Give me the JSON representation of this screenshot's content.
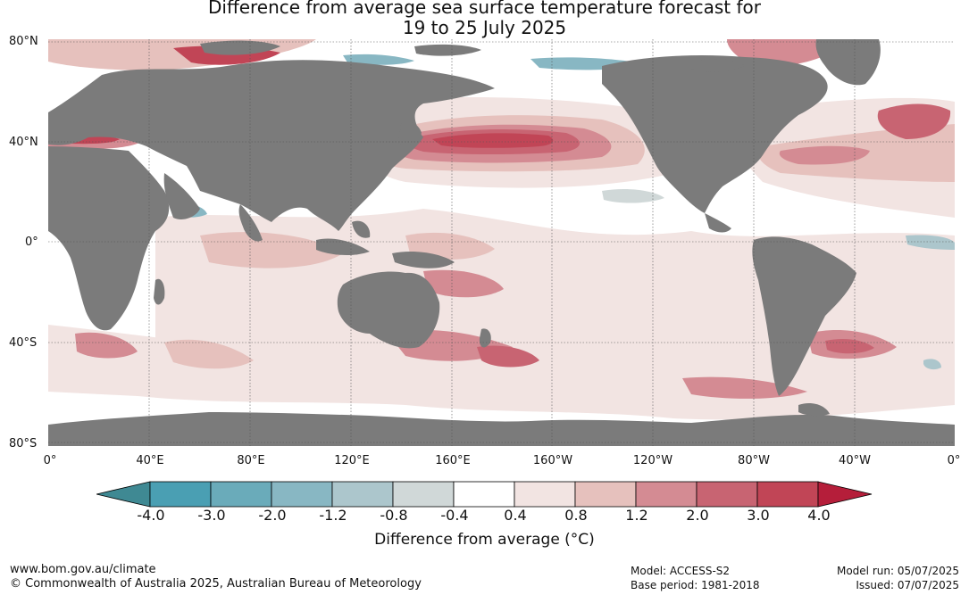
{
  "title_line1": "Difference from average sea surface temperature forecast for",
  "title_line2": "19 to 25 July 2025",
  "lat_labels": [
    "80°N",
    "40°N",
    "0°",
    "40°S",
    "80°S"
  ],
  "lon_labels": [
    "0°",
    "40°E",
    "80°E",
    "120°E",
    "160°E",
    "160°W",
    "120°W",
    "80°W",
    "40°W",
    "0°"
  ],
  "colorbar": {
    "labels": [
      "-4.0",
      "-3.0",
      "-2.0",
      "-1.2",
      "-0.8",
      "-0.4",
      "0.4",
      "0.8",
      "1.2",
      "2.0",
      "3.0",
      "4.0"
    ],
    "colors": [
      "#3f8993",
      "#4a9fb3",
      "#6aabba",
      "#88b7c3",
      "#acc6cc",
      "#d0d8d8",
      "#ffffff",
      "#f2e4e2",
      "#e6c1bd",
      "#d48b93",
      "#c86472",
      "#c14556",
      "#b51e3a"
    ],
    "title": "Difference from average (°C)"
  },
  "colors": {
    "land": "#7b7b7b",
    "ocean": "#ffffff",
    "grid": "#555555"
  },
  "footer": {
    "url": "www.bom.gov.au/climate",
    "copyright": "© Commonwealth of Australia 2025, Australian Bureau of Meteorology",
    "model": "Model: ACCESS-S2",
    "base_period": "Base period: 1981-2018",
    "model_run": "Model run: 05/07/2025",
    "issued": "Issued: 07/07/2025"
  }
}
